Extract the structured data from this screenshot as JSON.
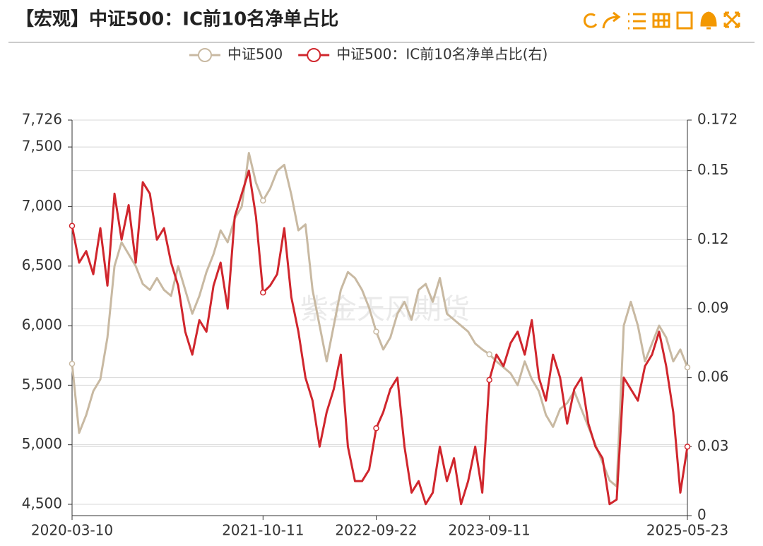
{
  "chart_data": {
    "type": "line",
    "title": "【宏观】中证500：IC前10名净单占比",
    "watermark": "紫金天风期货",
    "categories": [
      "2020-03-10",
      null,
      null,
      null,
      null,
      null,
      null,
      null,
      null,
      null,
      null,
      null,
      null,
      null,
      null,
      null,
      null,
      null,
      null,
      null,
      null,
      null,
      null,
      null,
      null,
      null,
      null,
      "2021-10-11",
      null,
      null,
      null,
      null,
      null,
      null,
      null,
      null,
      null,
      null,
      null,
      null,
      null,
      null,
      null,
      "2022-09-22",
      null,
      null,
      null,
      null,
      null,
      null,
      null,
      null,
      null,
      null,
      null,
      null,
      null,
      null,
      null,
      "2023-09-11",
      null,
      null,
      null,
      null,
      null,
      null,
      null,
      null,
      null,
      null,
      null,
      null,
      null,
      null,
      null,
      null,
      null,
      null,
      null,
      null,
      null,
      null,
      null,
      null,
      null,
      null,
      null,
      "2025-05-23"
    ],
    "series": [
      {
        "name": "中证500",
        "color": "#c8b9a2",
        "axis": "y",
        "values": [
          5680,
          5100,
          5250,
          5450,
          5550,
          5900,
          6500,
          6700,
          6600,
          6500,
          6350,
          6300,
          6400,
          6300,
          6250,
          6500,
          6300,
          6100,
          6250,
          6450,
          6600,
          6800,
          6700,
          6900,
          7000,
          7450,
          7200,
          7050,
          7150,
          7300,
          7350,
          7100,
          6800,
          6850,
          6300,
          6000,
          5700,
          6000,
          6300,
          6450,
          6400,
          6300,
          6150,
          5950,
          5800,
          5900,
          6100,
          6200,
          6050,
          6300,
          6350,
          6200,
          6400,
          6100,
          6050,
          6000,
          5950,
          5850,
          5800,
          5760,
          5700,
          5650,
          5600,
          5500,
          5700,
          5550,
          5450,
          5250,
          5150,
          5300,
          5350,
          5450,
          5300,
          5150,
          5000,
          4850,
          4700,
          4650,
          6000,
          6200,
          6000,
          5700,
          5850,
          6000,
          5900,
          5700,
          5800,
          5650
        ]
      },
      {
        "name": "中证500：IC前10名净单占比(右)",
        "color": "#d0262d",
        "axis": "y2",
        "values": [
          0.126,
          0.11,
          0.115,
          0.105,
          0.125,
          0.1,
          0.14,
          0.12,
          0.135,
          0.11,
          0.145,
          0.14,
          0.12,
          0.125,
          0.11,
          0.1,
          0.08,
          0.07,
          0.085,
          0.08,
          0.1,
          0.11,
          0.09,
          0.13,
          0.14,
          0.15,
          0.13,
          0.097,
          0.1,
          0.105,
          0.125,
          0.095,
          0.08,
          0.06,
          0.05,
          0.03,
          0.045,
          0.055,
          0.07,
          0.03,
          0.015,
          0.015,
          0.02,
          0.038,
          0.045,
          0.055,
          0.06,
          0.03,
          0.01,
          0.015,
          0.005,
          0.01,
          0.03,
          0.015,
          0.025,
          0.005,
          0.015,
          0.03,
          0.01,
          0.059,
          0.07,
          0.065,
          0.075,
          0.08,
          0.07,
          0.085,
          0.06,
          0.05,
          0.07,
          0.06,
          0.04,
          0.055,
          0.06,
          0.04,
          0.03,
          0.025,
          0.005,
          0.007,
          0.06,
          0.055,
          0.05,
          0.065,
          0.07,
          0.08,
          0.065,
          0.045,
          0.01,
          0.03
        ]
      }
    ],
    "ylim": [
      4405,
      7726
    ],
    "yticks": [
      {
        "value": 4500,
        "label": "4,500"
      },
      {
        "value": 5000,
        "label": "5,000"
      },
      {
        "value": 5500,
        "label": "5,500"
      },
      {
        "value": 6000,
        "label": "6,000"
      },
      {
        "value": 6500,
        "label": "6,500"
      },
      {
        "value": 7000,
        "label": "7,000"
      },
      {
        "value": 7500,
        "label": "7,500"
      },
      {
        "value": 7726,
        "label": "7,726"
      }
    ],
    "y2lim": [
      0,
      0.172
    ],
    "y2ticks": [
      0,
      0.03,
      0.06,
      0.09,
      0.12,
      0.15,
      0.172
    ],
    "grid": true,
    "legend": "top"
  }
}
